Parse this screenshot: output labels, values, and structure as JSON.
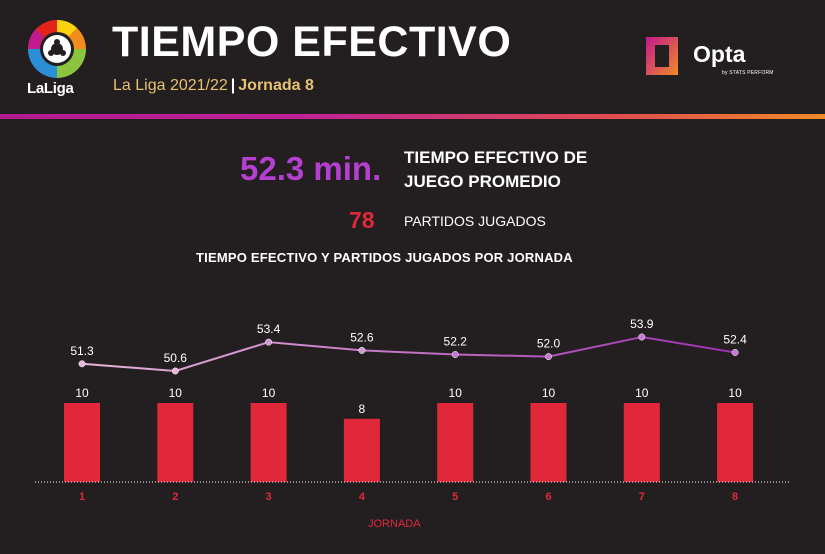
{
  "header": {
    "title": "TIEMPO EFECTIVO",
    "league_season": "La Liga 2021/22",
    "separator": "|",
    "round": "Jornada 8",
    "laliga_logo_text": "LaLiga",
    "opta_logo_text": "Opta",
    "opta_sub_text": "by STATS PERFORM"
  },
  "kpis": {
    "avg_time_value": "52.3 min.",
    "avg_time_label": "TIEMPO EFECTIVO DE JUEGO PROMEDIO",
    "matches_value": "78",
    "matches_label": "PARTIDOS JUGADOS"
  },
  "colors": {
    "background": "#231f20",
    "bar": "#e0283a",
    "line_start": "#e8b6d8",
    "line_end": "#9b2fae",
    "accent_purple": "#b43fd0",
    "accent_gold": "#e6c170"
  },
  "chart_data": {
    "type": "bar+line",
    "title": "TIEMPO EFECTIVO Y PARTIDOS JUGADOS  POR JORNADA",
    "xlabel": "JORNADA",
    "categories": [
      "1",
      "2",
      "3",
      "4",
      "5",
      "6",
      "7",
      "8"
    ],
    "series": [
      {
        "name": "Partidos jugados",
        "type": "bar",
        "values": [
          10,
          10,
          10,
          8,
          10,
          10,
          10,
          10
        ],
        "labels": [
          "10",
          "10",
          "10",
          "8",
          "10",
          "10",
          "10",
          "10"
        ]
      },
      {
        "name": "Tiempo efectivo",
        "type": "line",
        "values": [
          51.3,
          50.6,
          53.4,
          52.6,
          52.2,
          52.0,
          53.9,
          52.4
        ],
        "labels": [
          "51.3",
          "50.6",
          "53.4",
          "52.6",
          "52.2",
          "52.0",
          "53.9",
          "52.4"
        ]
      }
    ],
    "bar_ylim": [
      0,
      10
    ],
    "line_ylim": [
      50.6,
      53.9
    ],
    "grid": false,
    "legend": "none"
  }
}
